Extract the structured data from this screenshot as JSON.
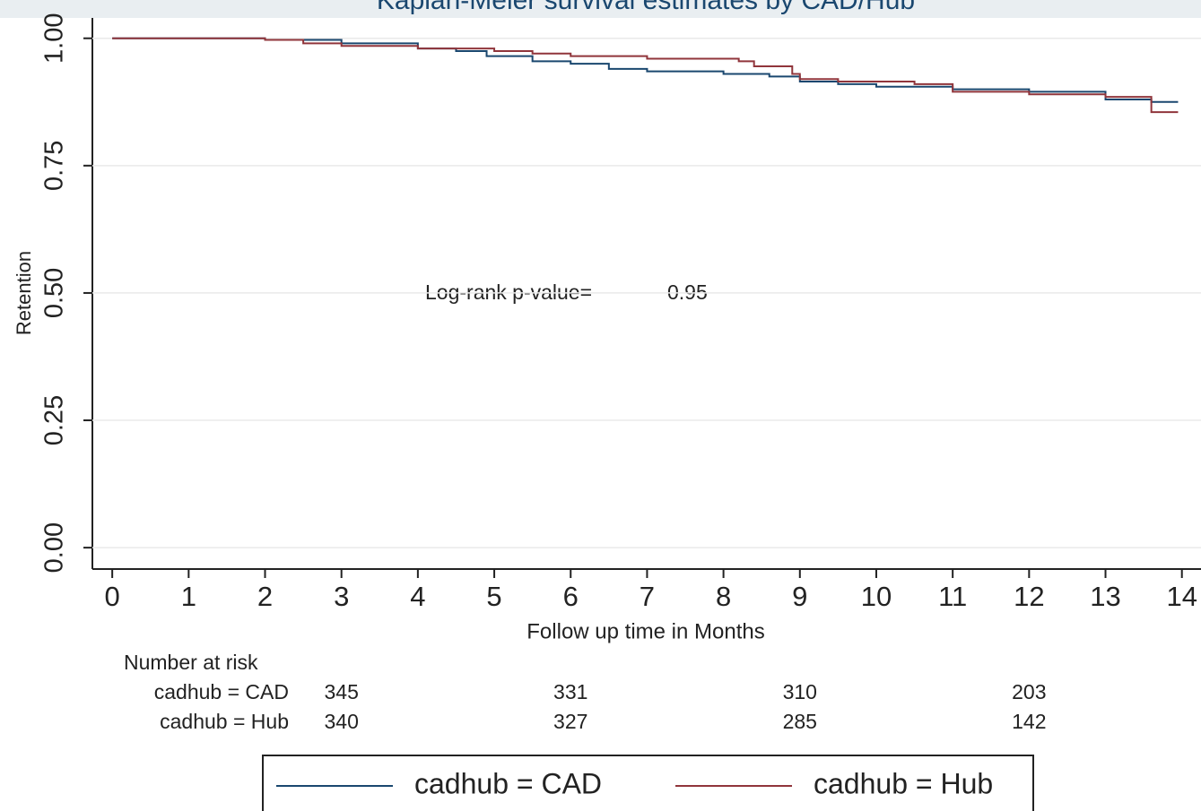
{
  "chart_data": {
    "type": "step",
    "title": "Kaplan-Meier survival estimates by CAD/Hub",
    "x_label": "Follow up time in Months",
    "y_label": "Retention",
    "xlim": [
      -0.26,
      14.25
    ],
    "ylim": [
      -0.042,
      1.04
    ],
    "xticks": [
      0,
      1,
      2,
      3,
      4,
      5,
      6,
      7,
      8,
      9,
      10,
      11,
      12,
      13,
      14
    ],
    "yticks": [
      {
        "value": 0,
        "label": "0.00"
      },
      0.25,
      {
        "value": 0.5,
        "label": "0.50"
      },
      0.75,
      {
        "value": 1,
        "label": "1.00"
      }
    ],
    "grid": true,
    "annotation": {
      "text": "Log-rank p-value=",
      "value": 0.95
    },
    "series": [
      {
        "name": "cadhub = CAD",
        "color": "#1a476f",
        "x": [
          0,
          2,
          3,
          4,
          4.5,
          4.9,
          5.5,
          6,
          6.5,
          7,
          8,
          8.6,
          9,
          9.5,
          10,
          11,
          12,
          13,
          13.6,
          13.95
        ],
        "values": [
          1,
          0.997,
          0.99,
          0.98,
          0.975,
          0.965,
          0.955,
          0.95,
          0.94,
          0.935,
          0.93,
          0.925,
          0.915,
          0.91,
          0.905,
          0.9,
          0.895,
          0.88,
          0.875,
          0.875
        ]
      },
      {
        "name": "cadhub = Hub",
        "color": "#90353b",
        "x": [
          0,
          2,
          2.5,
          3,
          4,
          5,
          5.5,
          6,
          7,
          8.2,
          8.4,
          8.9,
          9,
          9.5,
          10.5,
          11,
          12,
          13,
          13.6,
          13.95
        ],
        "values": [
          1,
          0.997,
          0.99,
          0.985,
          0.98,
          0.975,
          0.97,
          0.965,
          0.96,
          0.955,
          0.945,
          0.93,
          0.92,
          0.915,
          0.91,
          0.895,
          0.89,
          0.885,
          0.855,
          0.855
        ]
      }
    ],
    "risk_table": {
      "title": "Number at risk",
      "times": [
        3,
        6,
        9,
        12
      ],
      "rows": [
        {
          "label": "cadhub = CAD",
          "values": [
            345,
            331,
            310,
            203
          ]
        },
        {
          "label": "cadhub = Hub",
          "values": [
            340,
            327,
            285,
            142
          ]
        }
      ]
    }
  }
}
